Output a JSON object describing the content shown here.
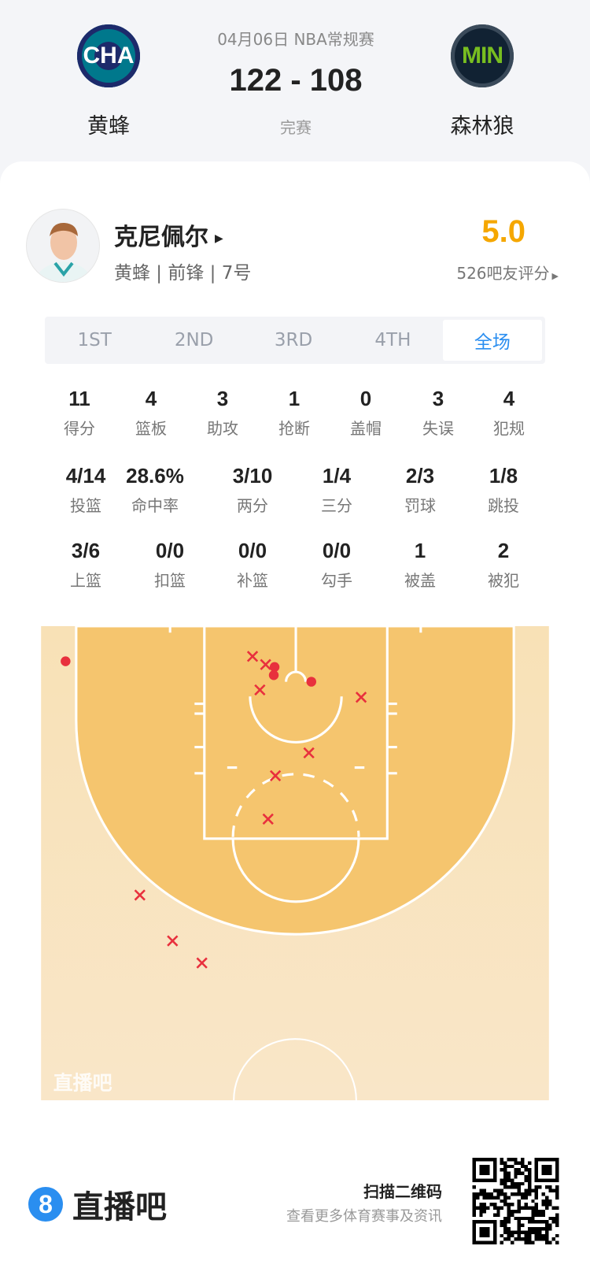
{
  "match": {
    "date_league": "04月06日 NBA常规赛",
    "score": "122 - 108",
    "status": "完赛",
    "home": {
      "abbr": "CHA",
      "name": "黄蜂",
      "color": "#1d2a6b"
    },
    "away": {
      "abbr": "MIN",
      "name": "森林狼",
      "color": "#78be20"
    }
  },
  "player": {
    "name": "克尼佩尔",
    "info": "黄蜂 | 前锋 | 7号",
    "rating": "5.0",
    "rating_count": "526吧友评分",
    "rating_color": "#f5a700"
  },
  "tabs": [
    {
      "label": "1ST"
    },
    {
      "label": "2ND"
    },
    {
      "label": "3RD"
    },
    {
      "label": "4TH"
    },
    {
      "label": "全场",
      "active": true
    }
  ],
  "stats_row1": [
    {
      "v": "11",
      "l": "得分"
    },
    {
      "v": "4",
      "l": "篮板"
    },
    {
      "v": "3",
      "l": "助攻"
    },
    {
      "v": "1",
      "l": "抢断"
    },
    {
      "v": "0",
      "l": "盖帽"
    },
    {
      "v": "3",
      "l": "失误"
    },
    {
      "v": "4",
      "l": "犯规"
    }
  ],
  "stats_row2": [
    {
      "v": "4/14",
      "l": "投篮"
    },
    {
      "v": "28.6%",
      "l": "命中率"
    },
    {
      "v": "3/10",
      "l": "两分"
    },
    {
      "v": "1/4",
      "l": "三分"
    },
    {
      "v": "2/3",
      "l": "罚球"
    },
    {
      "v": "1/8",
      "l": "跳投"
    }
  ],
  "stats_row3": [
    {
      "v": "3/6",
      "l": "上篮"
    },
    {
      "v": "0/0",
      "l": "扣篮"
    },
    {
      "v": "0/0",
      "l": "补篮"
    },
    {
      "v": "0/0",
      "l": "勾手"
    },
    {
      "v": "1",
      "l": "被盖"
    },
    {
      "v": "2",
      "l": "被犯"
    }
  ],
  "shot_chart": {
    "made": 4,
    "missed": 10,
    "shot_color": "#e8303d",
    "watermark": "直播吧"
  },
  "footer": {
    "brand": "直播吧",
    "brand_color": "#2a8ef0",
    "scan_title": "扫描二维码",
    "scan_sub": "查看更多体育赛事及资讯"
  }
}
